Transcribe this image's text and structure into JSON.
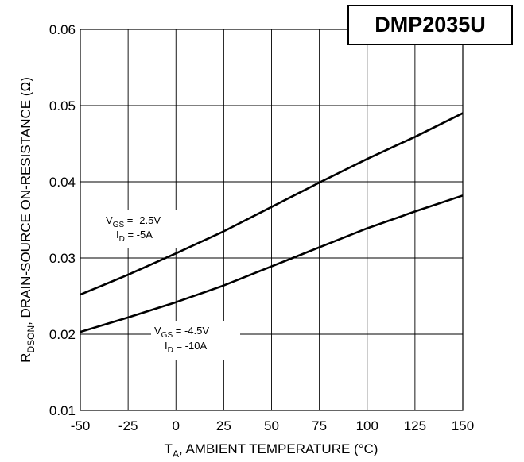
{
  "part_number": "DMP2035U",
  "chart_data": {
    "type": "line",
    "xlabel": {
      "main": "T",
      "sub": "A",
      "rest": ", AMBIENT TEMPERATURE (°C)"
    },
    "ylabel": {
      "main": "R",
      "sub": "DSON",
      "rest": ", DRAIN-SOURCE ON-RESISTANCE (Ω)"
    },
    "xlim": [
      -50,
      150
    ],
    "ylim": [
      0.01,
      0.06
    ],
    "xticks": [
      -50,
      -25,
      0,
      25,
      50,
      75,
      100,
      125,
      150
    ],
    "yticks": [
      0.01,
      0.02,
      0.03,
      0.04,
      0.05,
      0.06
    ],
    "xtick_labels": [
      "-50",
      "-25",
      "0",
      "25",
      "50",
      "75",
      "100",
      "125",
      "150"
    ],
    "ytick_labels": [
      "0.01",
      "0.02",
      "0.03",
      "0.04",
      "0.05",
      "0.06"
    ],
    "grid": true,
    "series": [
      {
        "x": [
          -50,
          -25,
          0,
          25,
          50,
          75,
          100,
          125,
          150
        ],
        "values": [
          0.0252,
          0.0278,
          0.0306,
          0.0335,
          0.0367,
          0.0399,
          0.043,
          0.0459,
          0.049
        ],
        "annotation": {
          "line1": {
            "main": "V",
            "sub": "GS",
            "rest": " = -2.5V"
          },
          "line2": {
            "main": "I",
            "sub": "D",
            "rest": " = -5A"
          }
        }
      },
      {
        "x": [
          -50,
          -25,
          0,
          25,
          50,
          75,
          100,
          125,
          150
        ],
        "values": [
          0.0203,
          0.0222,
          0.0242,
          0.0264,
          0.0289,
          0.0314,
          0.0339,
          0.0361,
          0.0382
        ],
        "annotation": {
          "line1": {
            "main": "V",
            "sub": "GS",
            "rest": " = -4.5V"
          },
          "line2": {
            "main": "I",
            "sub": "D",
            "rest": " = -10A"
          }
        }
      }
    ]
  }
}
